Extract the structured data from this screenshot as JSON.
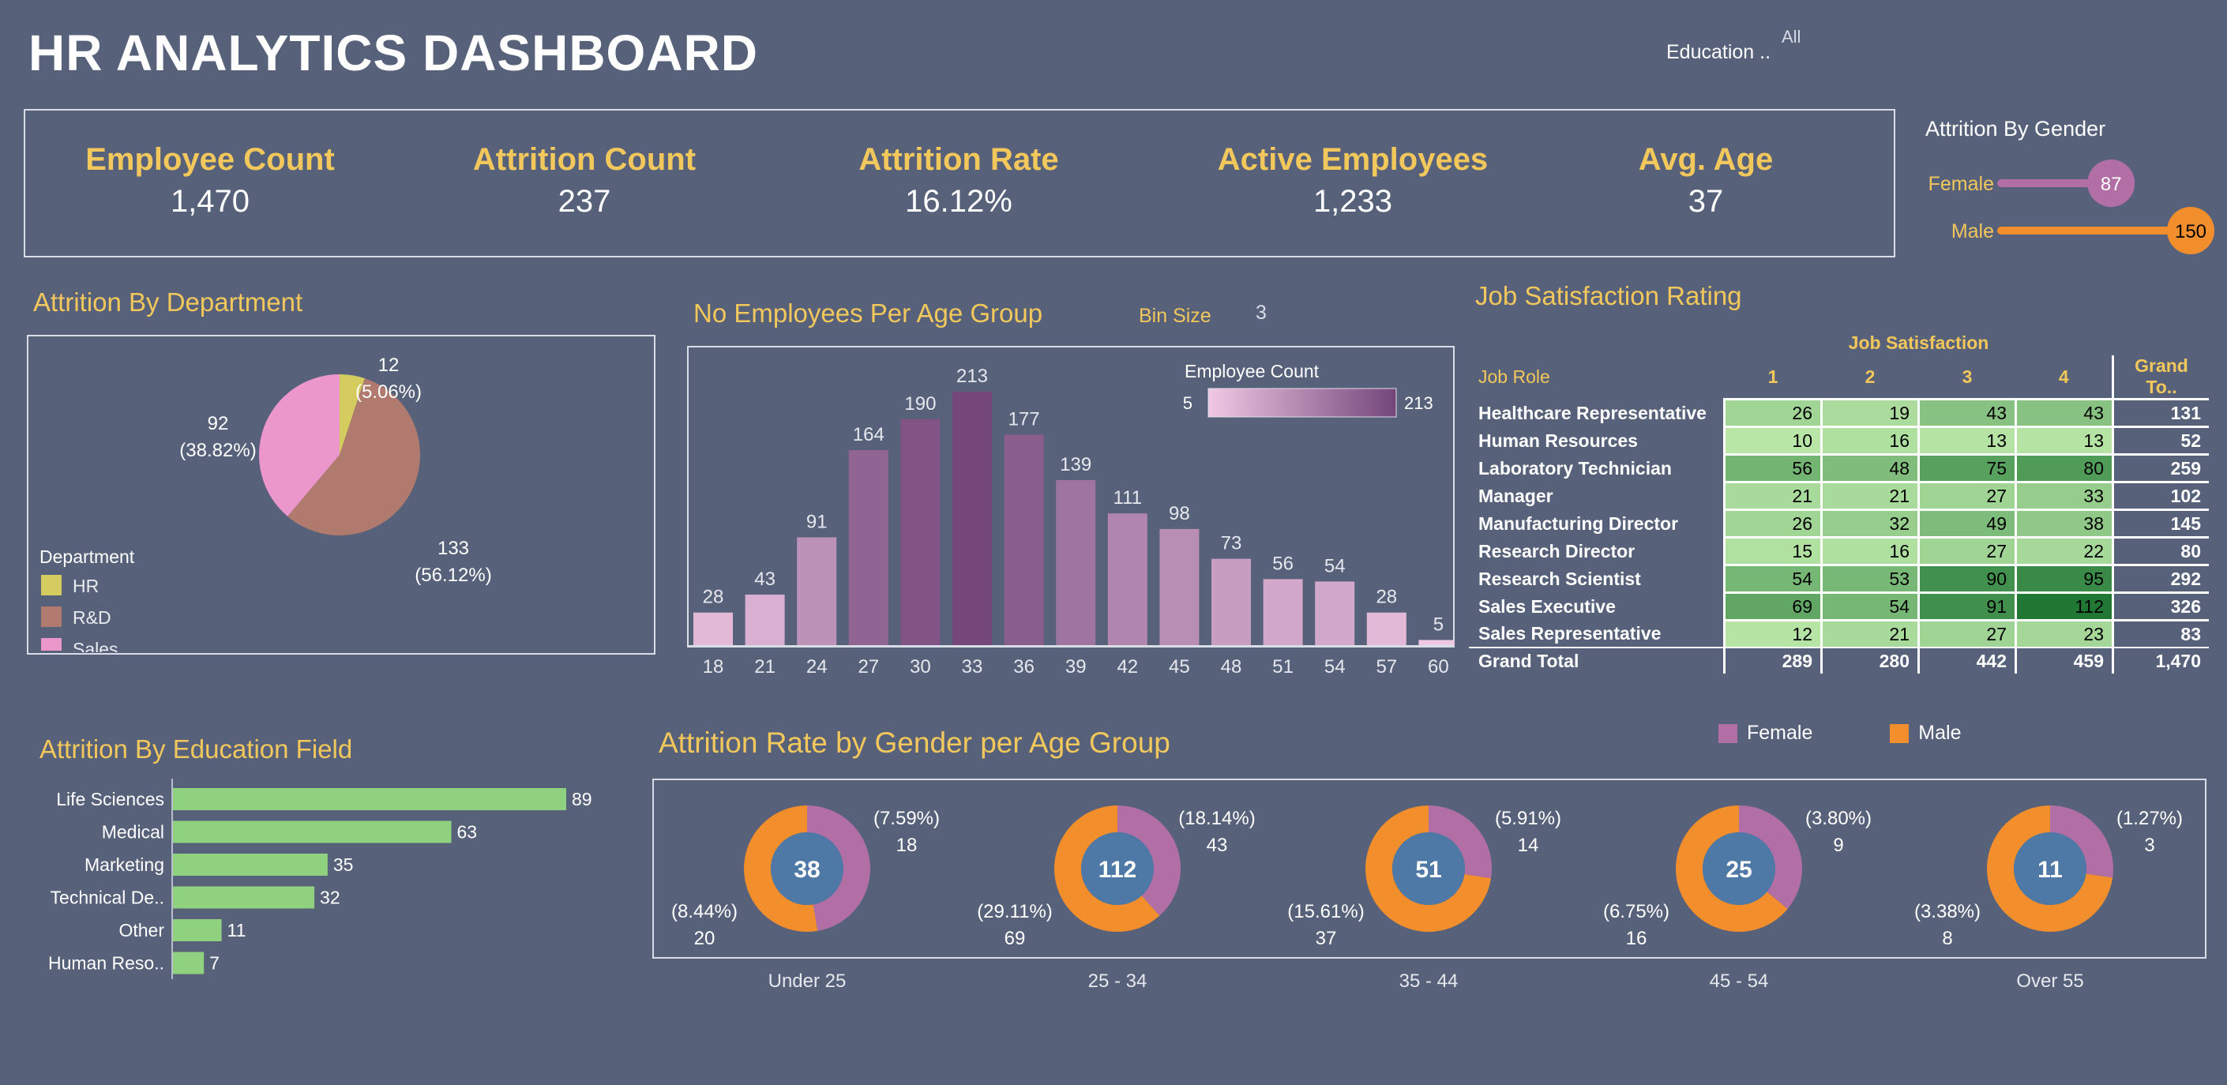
{
  "header": {
    "title": "HR ANALYTICS DASHBOARD",
    "filter_label": "Education ..",
    "filter_value": "All"
  },
  "kpis": [
    {
      "label": "Employee Count",
      "value": "1,470"
    },
    {
      "label": "Attrition Count",
      "value": "237"
    },
    {
      "label": "Attrition Rate",
      "value": "16.12%"
    },
    {
      "label": "Active Employees",
      "value": "1,233"
    },
    {
      "label": "Avg. Age",
      "value": "37"
    }
  ],
  "colors": {
    "background": "#57627a",
    "gold": "#f2c75c",
    "hr": "#d4cc5e",
    "rnd": "#b07a6e",
    "sales": "#ec97cc",
    "female": "#b26fa6",
    "male": "#f28e2b",
    "center": "#4e79a7",
    "edu_bar": "#8fd17e"
  },
  "chart_data": [
    {
      "id": "gender",
      "type": "bar",
      "title": "Attrition By Gender",
      "categories": [
        "Female",
        "Male"
      ],
      "values": [
        87,
        150
      ]
    },
    {
      "id": "department",
      "type": "pie",
      "title": "Attrition By Department",
      "legend_title": "Department",
      "slices": [
        {
          "name": "HR",
          "value": 12,
          "pct": "5.06%"
        },
        {
          "name": "R&D",
          "value": 133,
          "pct": "56.12%"
        },
        {
          "name": "Sales",
          "value": 92,
          "pct": "38.82%"
        }
      ]
    },
    {
      "id": "age",
      "type": "bar",
      "title": "No Employees Per Age Group",
      "bin_label": "Bin Size",
      "bin_value": "3",
      "legend_title": "Employee Count",
      "legend_min": "5",
      "legend_max": "213",
      "categories": [
        "18",
        "21",
        "24",
        "27",
        "30",
        "33",
        "36",
        "39",
        "42",
        "45",
        "48",
        "51",
        "54",
        "57",
        "60"
      ],
      "values": [
        28,
        43,
        91,
        164,
        190,
        213,
        177,
        139,
        111,
        98,
        73,
        56,
        54,
        28,
        5
      ],
      "ylim": [
        0,
        213
      ]
    },
    {
      "id": "job_satisfaction",
      "type": "table",
      "title": "Job Satisfaction Rating",
      "column_group": "Job Satisfaction",
      "row_header": "Job Role",
      "columns": [
        "1",
        "2",
        "3",
        "4"
      ],
      "total_header": "Grand To..",
      "rows": [
        {
          "role": "Healthcare Representative",
          "values": [
            26,
            19,
            43,
            43
          ],
          "total": 131
        },
        {
          "role": "Human Resources",
          "values": [
            10,
            16,
            13,
            13
          ],
          "total": 52
        },
        {
          "role": "Laboratory Technician",
          "values": [
            56,
            48,
            75,
            80
          ],
          "total": 259
        },
        {
          "role": "Manager",
          "values": [
            21,
            21,
            27,
            33
          ],
          "total": 102
        },
        {
          "role": "Manufacturing Director",
          "values": [
            26,
            32,
            49,
            38
          ],
          "total": 145
        },
        {
          "role": "Research Director",
          "values": [
            15,
            16,
            27,
            22
          ],
          "total": 80
        },
        {
          "role": "Research Scientist",
          "values": [
            54,
            53,
            90,
            95
          ],
          "total": 292
        },
        {
          "role": "Sales Executive",
          "values": [
            69,
            54,
            91,
            112
          ],
          "total": 326
        },
        {
          "role": "Sales Representative",
          "values": [
            12,
            21,
            27,
            23
          ],
          "total": 83
        }
      ],
      "grand_total": {
        "label": "Grand Total",
        "values": [
          289,
          280,
          442,
          459
        ],
        "total": "1,470"
      }
    },
    {
      "id": "education",
      "type": "bar",
      "title": "Attrition By Education Field",
      "categories": [
        "Life Sciences",
        "Medical",
        "Marketing",
        "Technical De..",
        "Other",
        "Human Reso.."
      ],
      "values": [
        89,
        63,
        35,
        32,
        11,
        7
      ]
    },
    {
      "id": "gender_age",
      "type": "pie",
      "title": "Attrition Rate by Gender per Age Group",
      "legend": [
        "Female",
        "Male"
      ],
      "groups": [
        {
          "label": "Under 25",
          "total": 38,
          "female": 18,
          "female_pct": "(7.59%)",
          "male": 20,
          "male_pct": "(8.44%)"
        },
        {
          "label": "25 - 34",
          "total": 112,
          "female": 43,
          "female_pct": "(18.14%)",
          "male": 69,
          "male_pct": "(29.11%)"
        },
        {
          "label": "35 - 44",
          "total": 51,
          "female": 14,
          "female_pct": "(5.91%)",
          "male": 37,
          "male_pct": "(15.61%)"
        },
        {
          "label": "45 - 54",
          "total": 25,
          "female": 9,
          "female_pct": "(3.80%)",
          "male": 16,
          "male_pct": "(6.75%)"
        },
        {
          "label": "Over 55",
          "total": 11,
          "female": 3,
          "female_pct": "(1.27%)",
          "male": 8,
          "male_pct": "(3.38%)"
        }
      ]
    }
  ]
}
